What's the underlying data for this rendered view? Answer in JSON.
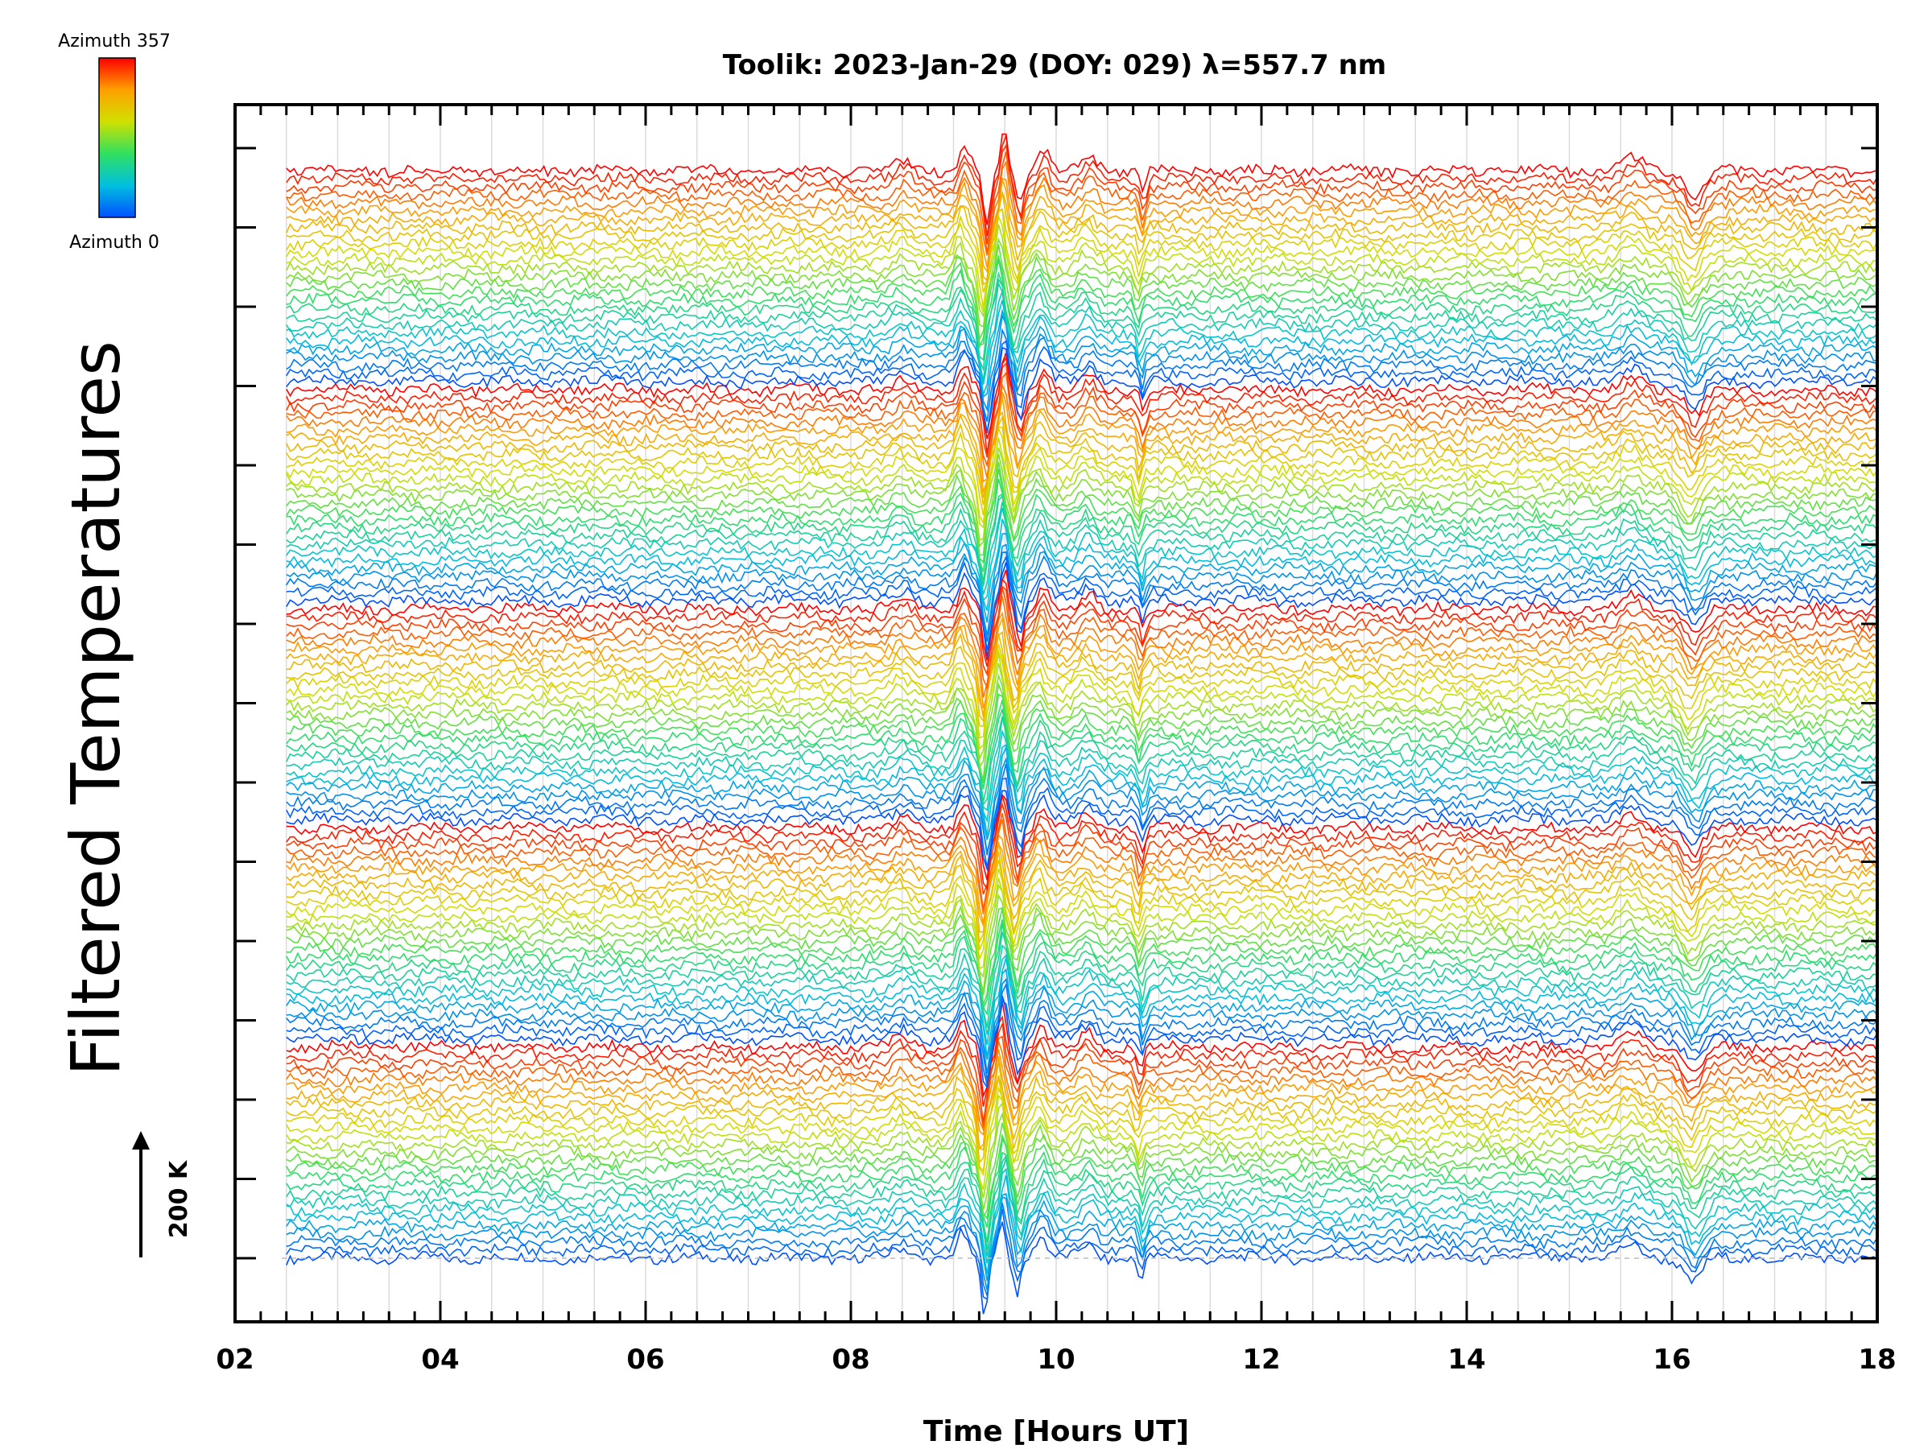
{
  "chart_data": {
    "type": "line",
    "title": "Toolik: 2023-Jan-29 (DOY: 029) λ=557.7 nm",
    "xlabel": "Time [Hours UT]",
    "ylabel": "Filtered Temperatures",
    "xlim": [
      2,
      18
    ],
    "x_ticks": [
      "02",
      "04",
      "06",
      "08",
      "10",
      "12",
      "14",
      "16",
      "18"
    ],
    "x_data_range": [
      2.5,
      18
    ],
    "grid": "vertical",
    "series_count": 135,
    "azimuth_period": 27,
    "colorbar": {
      "top_label": "Azimuth  357",
      "bottom_label": "Azimuth  0",
      "colors": [
        "#ff0000",
        "#ffa000",
        "#d0e000",
        "#30e060",
        "#00c0e0",
        "#0050ff"
      ]
    },
    "scale_bar_label": "200 K",
    "features": [
      {
        "t": 8.5,
        "amp": 0.35,
        "width": 0.12
      },
      {
        "t": 9.08,
        "amp": 0.9,
        "width": 0.07
      },
      {
        "t": 9.3,
        "amp": -2.0,
        "width": 0.05
      },
      {
        "t": 9.47,
        "amp": 1.5,
        "width": 0.045
      },
      {
        "t": 9.62,
        "amp": -1.2,
        "width": 0.05
      },
      {
        "t": 9.85,
        "amp": 0.8,
        "width": 0.08
      },
      {
        "t": 10.3,
        "amp": 0.5,
        "width": 0.1
      },
      {
        "t": 10.82,
        "amp": -0.8,
        "width": 0.04
      },
      {
        "t": 15.6,
        "amp": 0.45,
        "width": 0.15
      },
      {
        "t": 16.2,
        "amp": -0.9,
        "width": 0.12
      }
    ]
  }
}
